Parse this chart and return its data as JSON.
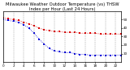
{
  "title": "Milwaukee Weather Outdoor Temperature (vs) THSW Index per Hour (Last 24 Hours)",
  "title_fontsize": 3.8,
  "background_color": "#ffffff",
  "plot_bg_color": "#ffffff",
  "grid_color": "#888888",
  "hours": [
    0,
    1,
    2,
    3,
    4,
    5,
    6,
    7,
    8,
    9,
    10,
    11,
    12,
    13,
    14,
    15,
    16,
    17,
    18,
    19,
    20,
    21,
    22,
    23
  ],
  "outdoor_temp": [
    52,
    51,
    50,
    49,
    47,
    45,
    43,
    40,
    38,
    37,
    36,
    36,
    35,
    35,
    35,
    34,
    34,
    34,
    34,
    33,
    33,
    33,
    33,
    33
  ],
  "thsw_index": [
    50,
    49,
    48,
    47,
    44,
    40,
    34,
    27,
    21,
    16,
    13,
    12,
    11,
    11,
    10,
    9,
    9,
    8,
    8,
    8,
    8,
    8,
    8,
    8
  ],
  "temp_color": "#dd0000",
  "thsw_color": "#0000dd",
  "marker_size": 1.8,
  "linewidth": 0.6,
  "ylim_min": 0,
  "ylim_max": 60,
  "yticks": [
    10,
    20,
    30,
    40,
    50
  ],
  "ytick_labels": [
    "10",
    "20",
    "30",
    "40",
    "50"
  ],
  "tick_fontsize": 3.0,
  "xtick_every": 2
}
